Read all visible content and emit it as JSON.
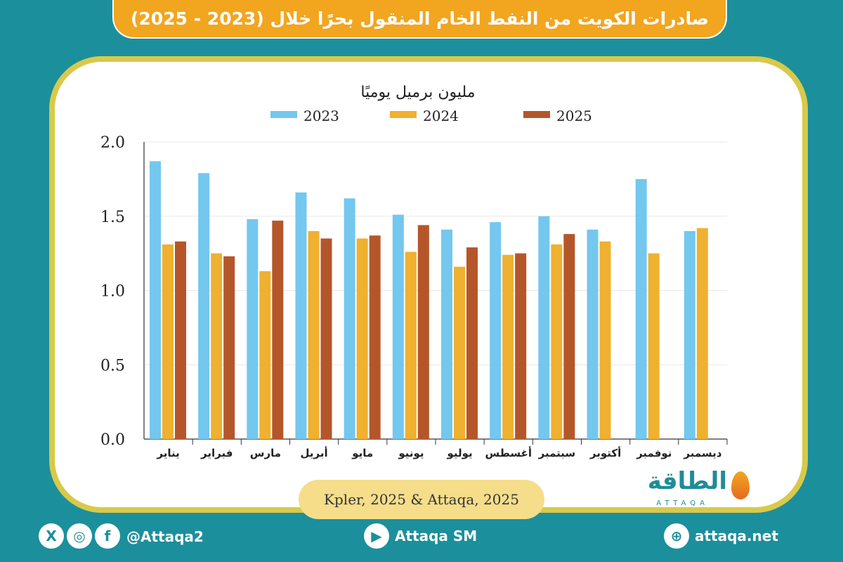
{
  "title": "صادرات الكويت من النفط الخام المنقول بحرًا خلال (2023 - 2025)",
  "source": "Kpler, 2025 & Attaqa, 2025",
  "logo": {
    "name": "الطاقة",
    "sub": "ATTAQA"
  },
  "footer": {
    "social_handle": "@Attaqa2",
    "youtube": "Attaqa SM",
    "website": "attaqa.net"
  },
  "colors": {
    "series_2023": "#74c7ef",
    "series_2024": "#f0b030",
    "series_2025": "#b5562a",
    "background": "#1c8f9c",
    "title_bar": "#f2a51f",
    "card_border": "#d8c94a"
  },
  "chart_data": {
    "type": "bar",
    "title": "مليون برميل يوميًا",
    "categories": [
      "يناير",
      "فبراير",
      "مارس",
      "أبريل",
      "مايو",
      "يونيو",
      "يوليو",
      "أغسطس",
      "سبتمبر",
      "أكتوبر",
      "نوفمبر",
      "ديسمبر"
    ],
    "series": [
      {
        "name": "2023",
        "values": [
          1.87,
          1.79,
          1.48,
          1.66,
          1.62,
          1.51,
          1.41,
          1.46,
          1.5,
          1.41,
          1.75,
          1.4
        ]
      },
      {
        "name": "2024",
        "values": [
          1.31,
          1.25,
          1.13,
          1.4,
          1.35,
          1.26,
          1.16,
          1.24,
          1.31,
          1.33,
          1.25,
          1.42
        ]
      },
      {
        "name": "2025",
        "values": [
          1.33,
          1.23,
          1.47,
          1.35,
          1.37,
          1.44,
          1.29,
          1.25,
          1.38,
          null,
          null,
          null
        ]
      }
    ],
    "ylim": [
      0,
      2.0
    ],
    "yticks": [
      "0.0",
      "0.5",
      "1.0",
      "1.5",
      "2.0"
    ],
    "grid": true,
    "legend": "top"
  }
}
